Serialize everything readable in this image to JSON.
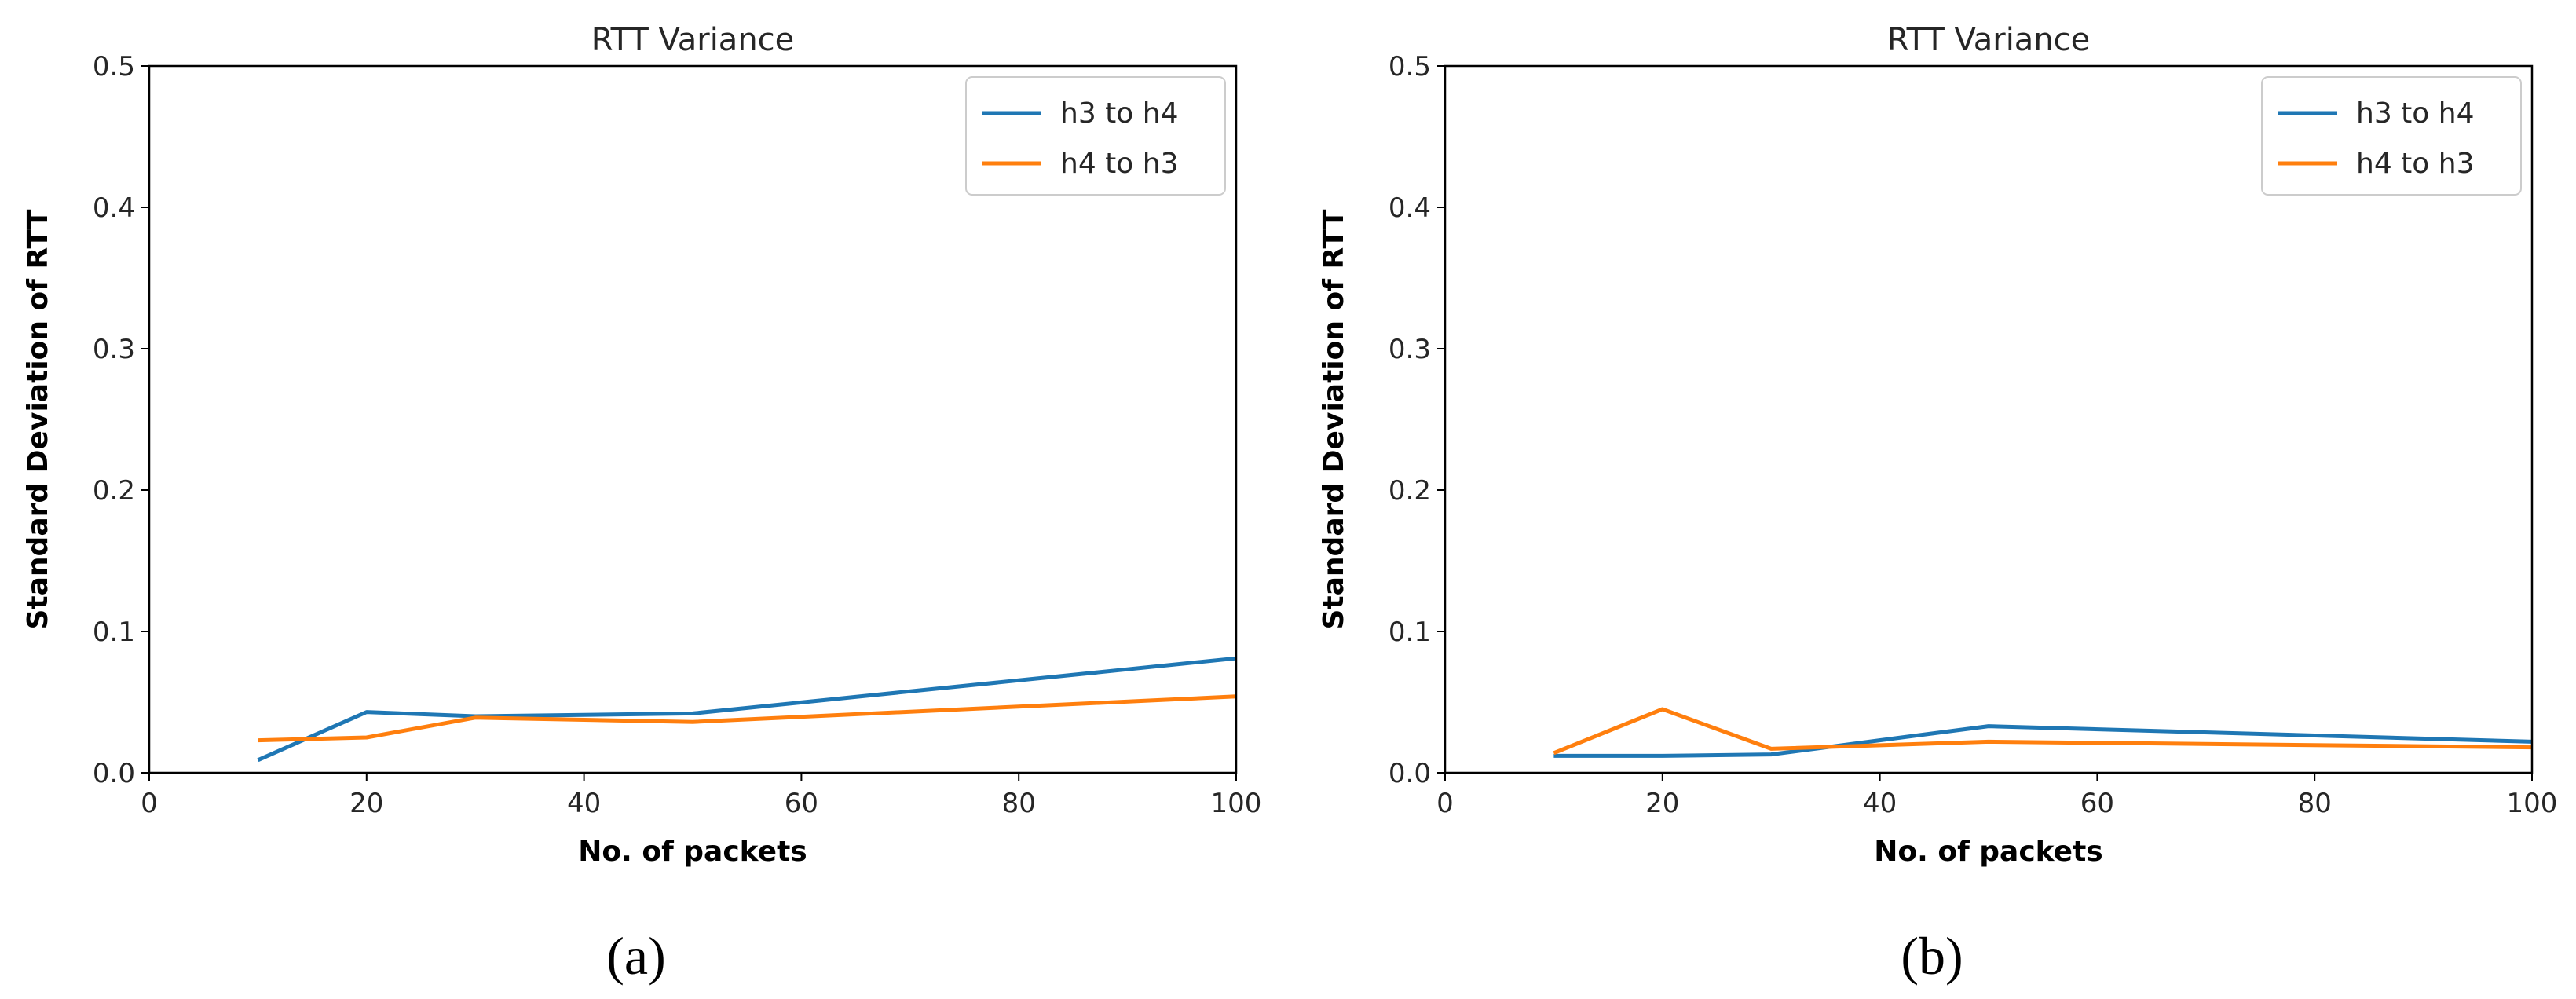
{
  "chart_data": [
    {
      "type": "line",
      "caption": "(a)",
      "title": "RTT Variance",
      "xlabel": "No. of packets",
      "ylabel": "Standard Deviation of RTT",
      "xlim": [
        0,
        100
      ],
      "ylim": [
        0,
        0.5
      ],
      "xticks": [
        "0",
        "20",
        "40",
        "60",
        "80",
        "100"
      ],
      "yticks": [
        "0.0",
        "0.1",
        "0.2",
        "0.3",
        "0.4",
        "0.5"
      ],
      "legend_position": "top-right",
      "series": [
        {
          "name": "h3 to h4",
          "color": "#1f77b4",
          "x": [
            10,
            20,
            30,
            50,
            100
          ],
          "y": [
            0.009,
            0.043,
            0.04,
            0.042,
            0.081
          ]
        },
        {
          "name": "h4 to h3",
          "color": "#ff7f0e",
          "x": [
            10,
            20,
            30,
            50,
            100
          ],
          "y": [
            0.023,
            0.025,
            0.039,
            0.036,
            0.054
          ]
        }
      ]
    },
    {
      "type": "line",
      "caption": "(b)",
      "title": "RTT Variance",
      "xlabel": "No. of packets",
      "ylabel": "Standard Deviation of RTT",
      "xlim": [
        0,
        100
      ],
      "ylim": [
        0,
        0.5
      ],
      "xticks": [
        "0",
        "20",
        "40",
        "60",
        "80",
        "100"
      ],
      "yticks": [
        "0.0",
        "0.1",
        "0.2",
        "0.3",
        "0.4",
        "0.5"
      ],
      "legend_position": "top-right",
      "series": [
        {
          "name": "h3 to h4",
          "color": "#1f77b4",
          "x": [
            10,
            20,
            30,
            50,
            100
          ],
          "y": [
            0.012,
            0.012,
            0.013,
            0.033,
            0.022
          ]
        },
        {
          "name": "h4 to h3",
          "color": "#ff7f0e",
          "x": [
            10,
            20,
            30,
            50,
            100
          ],
          "y": [
            0.014,
            0.045,
            0.017,
            0.022,
            0.018
          ]
        }
      ]
    }
  ]
}
